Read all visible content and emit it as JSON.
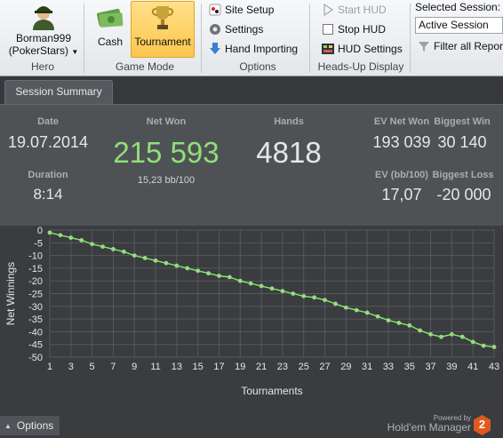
{
  "ribbon": {
    "hero": {
      "name": "Borman999",
      "site": "(PokerStars)",
      "group_label": "Hero"
    },
    "game_mode": {
      "cash_label": "Cash",
      "tournament_label": "Tournament",
      "group_label": "Game Mode"
    },
    "options": {
      "site_setup": "Site Setup",
      "settings": "Settings",
      "hand_importing": "Hand Importing",
      "group_label": "Options"
    },
    "hud": {
      "start_hud": "Start HUD",
      "stop_hud": "Stop HUD",
      "hud_settings": "HUD Settings",
      "group_label": "Heads-Up Display"
    },
    "session": {
      "label": "Selected Session:",
      "value": "Active Session",
      "filter_label": "Filter all Report"
    }
  },
  "tabs": [
    {
      "label": "Session Summary"
    }
  ],
  "summary": {
    "date_label": "Date",
    "date_value": "19.07.2014",
    "duration_label": "Duration",
    "duration_value": "8:14",
    "net_won_label": "Net Won",
    "net_won_value": "215 593",
    "net_won_sub": "15,23 bb/100",
    "hands_label": "Hands",
    "hands_value": "4818",
    "ev_net_won_label": "EV Net Won",
    "ev_net_won_value": "193 039",
    "biggest_win_label": "Biggest Win",
    "biggest_win_value": "30 140",
    "ev_bb_label": "EV (bb/100)",
    "ev_bb_value": "17,07",
    "biggest_loss_label": "Biggest Loss",
    "biggest_loss_value": "-20 000"
  },
  "chart_data": {
    "type": "line",
    "xlabel": "Tournaments",
    "ylabel": "Net Winnings",
    "xlim": [
      1,
      43
    ],
    "ylim": [
      -50,
      0
    ],
    "x_ticks": [
      1,
      3,
      5,
      7,
      9,
      11,
      13,
      15,
      17,
      19,
      21,
      23,
      25,
      27,
      29,
      31,
      33,
      35,
      37,
      39,
      41,
      43
    ],
    "y_ticks": [
      0,
      -5,
      -10,
      -15,
      -20,
      -25,
      -30,
      -35,
      -40,
      -45,
      -50
    ],
    "grid": true,
    "line_color": "#8fe07a",
    "series": [
      {
        "x": [
          1,
          2,
          3,
          4,
          5,
          6,
          7,
          8,
          9,
          10,
          11,
          12,
          13,
          14,
          15,
          16,
          17,
          18,
          19,
          20,
          21,
          22,
          23,
          24,
          25,
          26,
          27,
          28,
          29,
          30,
          31,
          32,
          33,
          34,
          35,
          36,
          37,
          38,
          39,
          40,
          41,
          42,
          43
        ],
        "values": [
          -1,
          -2,
          -3,
          -4,
          -5.5,
          -6.5,
          -7.5,
          -8.5,
          -10,
          -11,
          -12,
          -13,
          -14,
          -15,
          -16,
          -17,
          -18,
          -18.5,
          -20,
          -21,
          -22,
          -23,
          -24,
          -25,
          -26,
          -26.5,
          -27.5,
          -29,
          -30.5,
          -31.5,
          -32.5,
          -34,
          -35.5,
          -36.5,
          -37.5,
          -39.5,
          -41,
          -42,
          -41,
          -42,
          -44,
          -45.5,
          -46
        ]
      }
    ]
  },
  "footer": {
    "options_label": "Options",
    "powered_by": "Powered by",
    "brand": "Hold'em Manager",
    "brand_badge": "2"
  }
}
